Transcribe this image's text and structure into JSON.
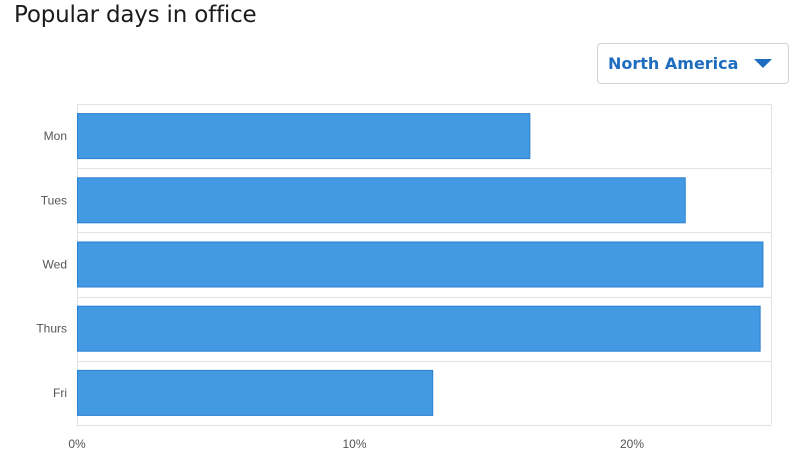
{
  "title": "Popular days in office",
  "region_select": {
    "selected": "North America",
    "icon": "chevron-down-icon"
  },
  "chart_data": {
    "type": "bar",
    "orientation": "horizontal",
    "categories": [
      "Mon",
      "Tues",
      "Wed",
      "Thurs",
      "Fri"
    ],
    "values": [
      16.3,
      21.9,
      24.7,
      24.6,
      12.8
    ],
    "x_ticks": [
      "0%",
      "10%",
      "20%"
    ],
    "xlim": [
      0,
      25
    ],
    "grid": true,
    "bar_color": "#4499e3",
    "bar_edge_color": "#2a7fd0",
    "grid_color": "#e3e3e3"
  }
}
